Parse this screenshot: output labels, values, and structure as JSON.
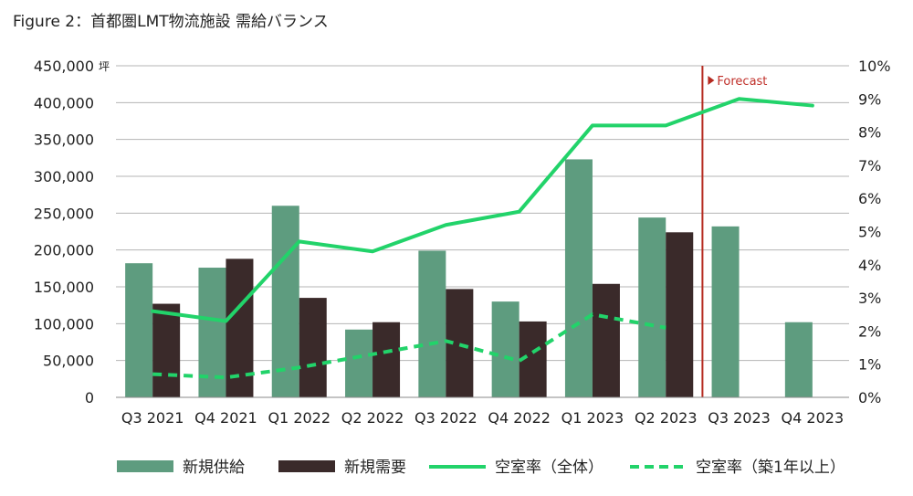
{
  "figure": {
    "title": "Figure 2：首都圏LMT物流施設 需給バランス"
  },
  "chart_data": {
    "type": "bar",
    "categories": [
      "Q3 2021",
      "Q4 2021",
      "Q1 2022",
      "Q2 2022",
      "Q3 2022",
      "Q4 2022",
      "Q1 2023",
      "Q2 2023",
      "Q3 2023",
      "Q4 2023"
    ],
    "y_left": {
      "unit": "坪",
      "lim": [
        0,
        450000
      ],
      "ticks": [
        "0",
        "50,000",
        "100,000",
        "150,000",
        "200,000",
        "250,000",
        "300,000",
        "350,000",
        "400,000",
        "450,000"
      ]
    },
    "y_right": {
      "lim": [
        0,
        10
      ],
      "ticks": [
        "0%",
        "1%",
        "2%",
        "3%",
        "4%",
        "5%",
        "6%",
        "7%",
        "8%",
        "9%",
        "10%"
      ]
    },
    "series": [
      {
        "name": "新規供給",
        "kind": "bar",
        "color": "#5e9c7f",
        "values": [
          182000,
          176000,
          260000,
          92000,
          199000,
          130000,
          323000,
          244000,
          232000,
          102000
        ]
      },
      {
        "name": "新規需要",
        "kind": "bar",
        "color": "#3a2a2a",
        "values": [
          127000,
          188000,
          135000,
          102000,
          147000,
          103000,
          154000,
          224000,
          null,
          null
        ]
      },
      {
        "name": "空室率（全体）",
        "kind": "line",
        "axis": "right",
        "color": "#22d36a",
        "style": "solid",
        "values": [
          2.6,
          2.3,
          4.7,
          4.4,
          5.2,
          5.6,
          8.2,
          8.2,
          9.0,
          8.8
        ]
      },
      {
        "name": "空室率（築1年以上）",
        "kind": "line",
        "axis": "right",
        "color": "#22d36a",
        "style": "dashed",
        "values": [
          0.7,
          0.6,
          0.9,
          1.3,
          1.7,
          1.1,
          2.5,
          2.1,
          null,
          null
        ]
      }
    ],
    "forecast": {
      "label": "Forecast",
      "after_category": "Q2 2023",
      "color": "#b52a20"
    },
    "grid": true,
    "legend_position": "bottom"
  }
}
